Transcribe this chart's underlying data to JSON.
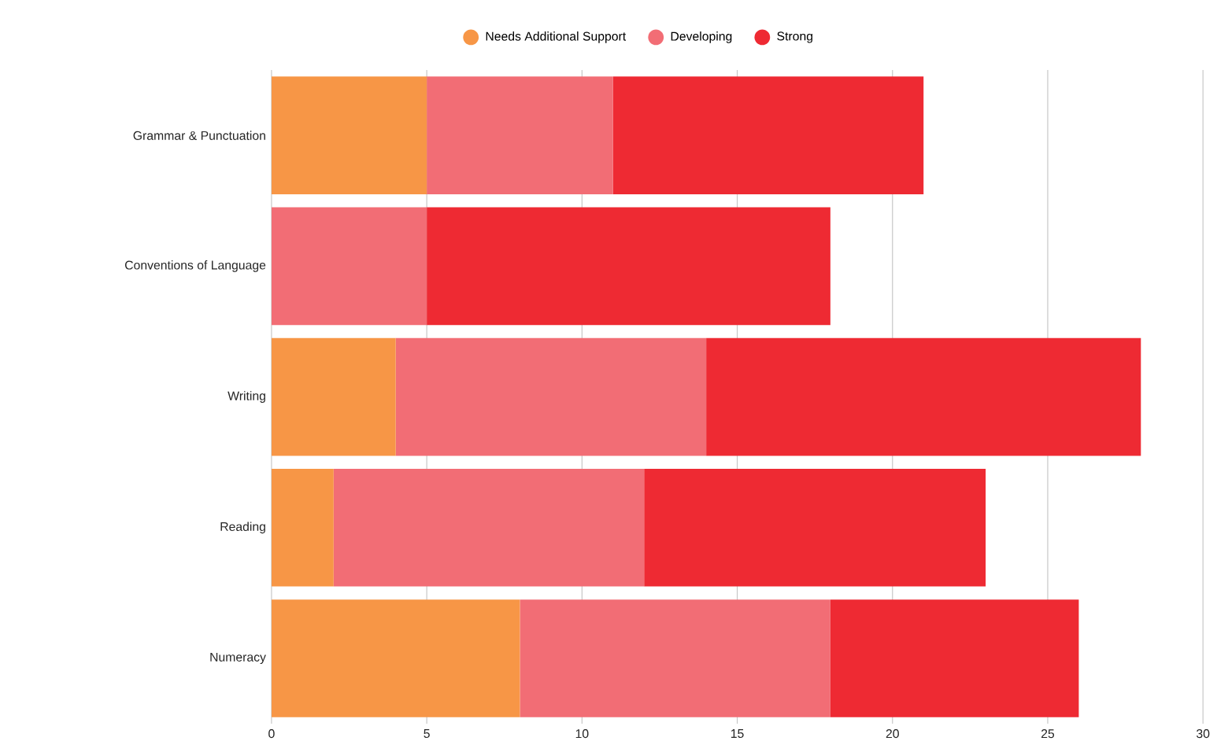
{
  "chart_data": {
    "type": "bar",
    "orientation": "horizontal",
    "stacked": true,
    "categories": [
      "Grammar & Punctuation",
      "Conventions of Language",
      "Writing",
      "Reading",
      "Numeracy"
    ],
    "series": [
      {
        "name": "Needs Additional Support",
        "color": "#f79646",
        "values": [
          5,
          0,
          4,
          2,
          8
        ]
      },
      {
        "name": "Developing",
        "color": "#f26d75",
        "values": [
          6,
          5,
          10,
          10,
          10
        ]
      },
      {
        "name": "Strong",
        "color": "#ee2a33",
        "values": [
          10,
          13,
          14,
          11,
          8
        ]
      }
    ],
    "xlim": [
      0,
      30
    ],
    "xticks": [
      0,
      5,
      10,
      15,
      20,
      25,
      30
    ],
    "grid": "x",
    "legend": "top"
  }
}
